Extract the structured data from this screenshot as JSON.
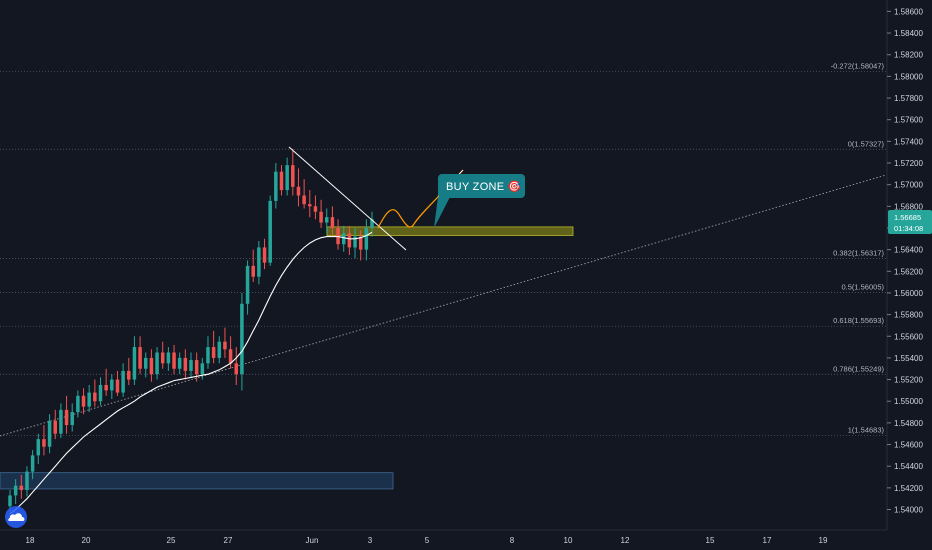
{
  "colors": {
    "background": "#131722",
    "up_candle": "#26a69a",
    "down_candle": "#ef5350",
    "moving_average": "#ffffff",
    "trendline": "#ffffff",
    "fib_line": "#5d606b",
    "buy_zone_fill": "#6b6b1a",
    "demand_zone_fill": "#1f3a5a",
    "callout_bg": "#167d86",
    "price_tag_bg": "#26a69a",
    "projection": "#ff9800"
  },
  "chart_data": {
    "type": "candlestick",
    "title": "",
    "xlabel": "",
    "ylabel": "",
    "ylim": [
      1.5394,
      1.5865
    ],
    "x_ticks": [
      "18",
      "20",
      "25",
      "27",
      "Jun",
      "3",
      "5",
      "8",
      "10",
      "12",
      "15",
      "17",
      "19"
    ],
    "y_ticks": [
      "1.58600",
      "1.58400",
      "1.58200",
      "1.58000",
      "1.57800",
      "1.57600",
      "1.57400",
      "1.57200",
      "1.57000",
      "1.56800",
      "1.56600",
      "1.56400",
      "1.56200",
      "1.56000",
      "1.55800",
      "1.55600",
      "1.55400",
      "1.55200",
      "1.55000",
      "1.54800",
      "1.54600",
      "1.54400",
      "1.54200",
      "1.54000"
    ],
    "current_price": "1.56685",
    "countdown": "01:34:08",
    "fib_levels": [
      {
        "label": "-0.272(1.58047)",
        "price": 1.58047
      },
      {
        "label": "0(1.57327)",
        "price": 1.57327
      },
      {
        "label": "0.382(1.56317)",
        "price": 1.56317
      },
      {
        "label": "0.5(1.56005)",
        "price": 1.56005
      },
      {
        "label": "0.618(1.55693)",
        "price": 1.55693
      },
      {
        "label": "0.786(1.55249)",
        "price": 1.55249
      },
      {
        "label": "1(1.54683)",
        "price": 1.54683
      }
    ],
    "candles_ohlc": [
      [
        1.5403,
        1.5418,
        1.5398,
        1.5413
      ],
      [
        1.5413,
        1.5428,
        1.5405,
        1.5422
      ],
      [
        1.5422,
        1.5432,
        1.541,
        1.5418
      ],
      [
        1.5418,
        1.544,
        1.5412,
        1.5435
      ],
      [
        1.5435,
        1.5455,
        1.5428,
        1.545
      ],
      [
        1.545,
        1.547,
        1.5442,
        1.5465
      ],
      [
        1.5465,
        1.5478,
        1.545,
        1.5458
      ],
      [
        1.5458,
        1.5488,
        1.5452,
        1.5482
      ],
      [
        1.5482,
        1.5492,
        1.5465,
        1.547
      ],
      [
        1.547,
        1.5498,
        1.5466,
        1.5492
      ],
      [
        1.5492,
        1.5505,
        1.547,
        1.5478
      ],
      [
        1.5478,
        1.5498,
        1.5472,
        1.549
      ],
      [
        1.549,
        1.551,
        1.5485,
        1.5505
      ],
      [
        1.5505,
        1.5512,
        1.5488,
        1.5495
      ],
      [
        1.5495,
        1.5515,
        1.549,
        1.5508
      ],
      [
        1.5508,
        1.552,
        1.5495,
        1.55
      ],
      [
        1.55,
        1.5522,
        1.5496,
        1.5515
      ],
      [
        1.5515,
        1.553,
        1.5505,
        1.551
      ],
      [
        1.551,
        1.5525,
        1.5502,
        1.552
      ],
      [
        1.552,
        1.5528,
        1.5505,
        1.5508
      ],
      [
        1.5508,
        1.5535,
        1.5504,
        1.5528
      ],
      [
        1.5528,
        1.554,
        1.5515,
        1.552
      ],
      [
        1.552,
        1.556,
        1.5515,
        1.555
      ],
      [
        1.555,
        1.556,
        1.5525,
        1.553
      ],
      [
        1.553,
        1.5545,
        1.5522,
        1.554
      ],
      [
        1.554,
        1.5548,
        1.5518,
        1.5525
      ],
      [
        1.5525,
        1.555,
        1.552,
        1.5545
      ],
      [
        1.5545,
        1.5555,
        1.553,
        1.5535
      ],
      [
        1.5535,
        1.555,
        1.5528,
        1.5545
      ],
      [
        1.5545,
        1.5552,
        1.5525,
        1.553
      ],
      [
        1.553,
        1.5545,
        1.5525,
        1.554
      ],
      [
        1.554,
        1.5548,
        1.552,
        1.5528
      ],
      [
        1.5528,
        1.5545,
        1.5522,
        1.5538
      ],
      [
        1.5538,
        1.5545,
        1.5518,
        1.5525
      ],
      [
        1.5525,
        1.554,
        1.552,
        1.5535
      ],
      [
        1.5535,
        1.556,
        1.553,
        1.555
      ],
      [
        1.555,
        1.5565,
        1.5535,
        1.554
      ],
      [
        1.554,
        1.556,
        1.5535,
        1.5555
      ],
      [
        1.5555,
        1.5568,
        1.554,
        1.5548
      ],
      [
        1.5548,
        1.556,
        1.553,
        1.5535
      ],
      [
        1.5535,
        1.555,
        1.5515,
        1.5525
      ],
      [
        1.5525,
        1.56,
        1.551,
        1.559
      ],
      [
        1.559,
        1.563,
        1.558,
        1.5625
      ],
      [
        1.5625,
        1.564,
        1.561,
        1.5615
      ],
      [
        1.5615,
        1.5648,
        1.5608,
        1.5642
      ],
      [
        1.5642,
        1.565,
        1.5622,
        1.5628
      ],
      [
        1.5628,
        1.569,
        1.5625,
        1.5685
      ],
      [
        1.5685,
        1.572,
        1.5678,
        1.5712
      ],
      [
        1.5712,
        1.5718,
        1.569,
        1.5695
      ],
      [
        1.5695,
        1.5725,
        1.569,
        1.5718
      ],
      [
        1.5718,
        1.5733,
        1.569,
        1.5698
      ],
      [
        1.5698,
        1.5715,
        1.568,
        1.569
      ],
      [
        1.569,
        1.5705,
        1.5678,
        1.5682
      ],
      [
        1.5682,
        1.5695,
        1.567,
        1.568
      ],
      [
        1.568,
        1.569,
        1.5668,
        1.5675
      ],
      [
        1.5675,
        1.5686,
        1.566,
        1.5665
      ],
      [
        1.5665,
        1.5678,
        1.5655,
        1.567
      ],
      [
        1.567,
        1.568,
        1.5652,
        1.566
      ],
      [
        1.566,
        1.5668,
        1.564,
        1.5645
      ],
      [
        1.5645,
        1.5662,
        1.5638,
        1.5655
      ],
      [
        1.5655,
        1.5662,
        1.5635,
        1.5642
      ],
      [
        1.5642,
        1.566,
        1.5632,
        1.5652
      ],
      [
        1.5652,
        1.5658,
        1.563,
        1.564
      ],
      [
        1.564,
        1.5668,
        1.563,
        1.566
      ],
      [
        1.566,
        1.5675,
        1.5652,
        1.5668
      ]
    ],
    "moving_average_values": [
      1.5396,
      1.54,
      1.5405,
      1.541,
      1.5416,
      1.5422,
      1.5428,
      1.5434,
      1.544,
      1.5446,
      1.5452,
      1.5457,
      1.5462,
      1.5467,
      1.5471,
      1.5475,
      1.5479,
      1.5483,
      1.5487,
      1.5491,
      1.5494,
      1.5497,
      1.55,
      1.5504,
      1.5507,
      1.551,
      1.5513,
      1.5515,
      1.5517,
      1.5519,
      1.552,
      1.5521,
      1.5522,
      1.5523,
      1.5524,
      1.5525,
      1.5527,
      1.5529,
      1.5532,
      1.5535,
      1.554,
      1.5546,
      1.5555,
      1.5565,
      1.5575,
      1.5586,
      1.5597,
      1.5607,
      1.5616,
      1.5624,
      1.5631,
      1.5637,
      1.5642,
      1.5646,
      1.5649,
      1.5651,
      1.5652,
      1.5652,
      1.5652,
      1.5651,
      1.565,
      1.565,
      1.5651,
      1.5653,
      1.5656
    ],
    "zones": [
      {
        "name": "buy-zone",
        "top": 1.5661,
        "bottom": 1.5653
      },
      {
        "name": "demand-zone",
        "top": 1.5434,
        "bottom": 1.5419
      }
    ],
    "annotations": {
      "callout": "BUY ZONE 🎯"
    }
  }
}
